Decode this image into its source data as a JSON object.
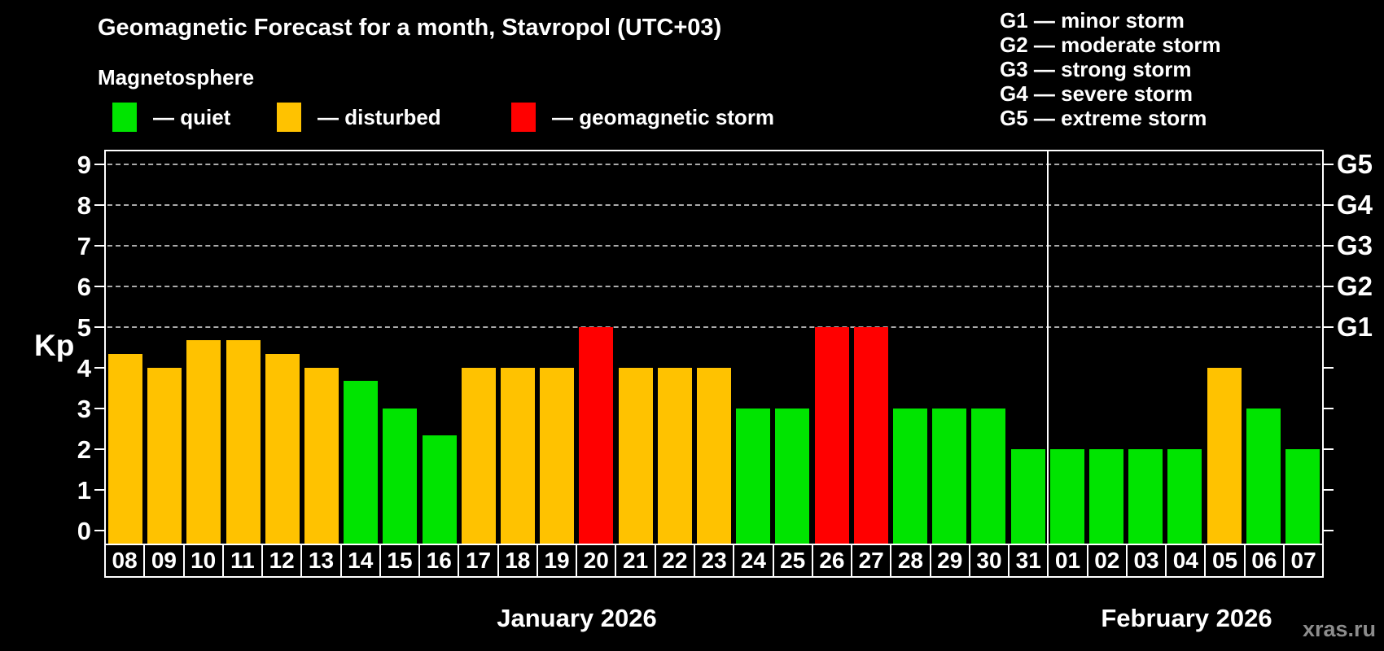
{
  "header": {
    "title": "Geomagnetic Forecast for a month, Stavropol (UTC+03)",
    "subtitle": "Magnetosphere"
  },
  "legend": [
    {
      "name": "quiet",
      "label": "— quiet",
      "color": "#00E400"
    },
    {
      "name": "disturbed",
      "label": "— disturbed",
      "color": "#FFC200"
    },
    {
      "name": "storm",
      "label": "— geomagnetic storm",
      "color": "#FF0000"
    }
  ],
  "storm_scale_legend": [
    "G1 — minor storm",
    "G2 — moderate storm",
    "G3 — strong storm",
    "G4 — severe storm",
    "G5 — extreme storm"
  ],
  "watermark": "xras.ru",
  "chart_data": {
    "type": "bar",
    "title": "Geomagnetic Forecast for a month, Stavropol (UTC+03)",
    "ylabel": "Kp",
    "ylim": [
      0,
      9
    ],
    "yticks": [
      "0",
      "1",
      "2",
      "3",
      "4",
      "5",
      "6",
      "7",
      "8",
      "9"
    ],
    "gridlines_at_kp": [
      5,
      6,
      7,
      8,
      9
    ],
    "right_axis_labels": [
      {
        "label": "G1",
        "kp": 5
      },
      {
        "label": "G2",
        "kp": 6
      },
      {
        "label": "G3",
        "kp": 7
      },
      {
        "label": "G4",
        "kp": 8
      },
      {
        "label": "G5",
        "kp": 9
      }
    ],
    "months": [
      {
        "label": "January 2026",
        "days": 24
      },
      {
        "label": "February 2026",
        "days": 7
      }
    ],
    "categories": [
      "08",
      "09",
      "10",
      "11",
      "12",
      "13",
      "14",
      "15",
      "16",
      "17",
      "18",
      "19",
      "20",
      "21",
      "22",
      "23",
      "24",
      "25",
      "26",
      "27",
      "28",
      "29",
      "30",
      "31",
      "01",
      "02",
      "03",
      "04",
      "05",
      "06",
      "07"
    ],
    "values": [
      4.33,
      4,
      4.67,
      4.67,
      4.33,
      4,
      3.67,
      3,
      2.33,
      4,
      4,
      4,
      5,
      4,
      4,
      4,
      3,
      3,
      5,
      5,
      3,
      3,
      3,
      2,
      2,
      2,
      2,
      2,
      4,
      3,
      2
    ],
    "statuses": [
      "disturbed",
      "disturbed",
      "disturbed",
      "disturbed",
      "disturbed",
      "disturbed",
      "quiet",
      "quiet",
      "quiet",
      "disturbed",
      "disturbed",
      "disturbed",
      "storm",
      "disturbed",
      "disturbed",
      "disturbed",
      "quiet",
      "quiet",
      "storm",
      "storm",
      "quiet",
      "quiet",
      "quiet",
      "quiet",
      "quiet",
      "quiet",
      "quiet",
      "quiet",
      "disturbed",
      "quiet",
      "quiet"
    ],
    "colors": {
      "quiet": "#00E400",
      "disturbed": "#FFC200",
      "storm": "#FF0000"
    }
  }
}
